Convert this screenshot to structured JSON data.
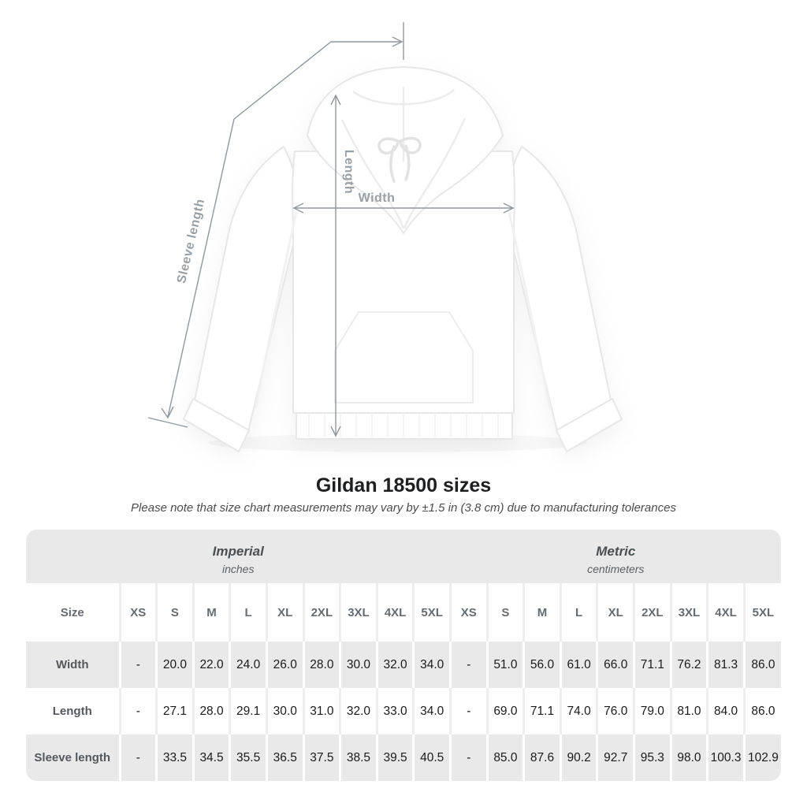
{
  "figure": {
    "labels": {
      "length": "Length",
      "width": "Width",
      "sleeve_length": "Sleeve length"
    }
  },
  "header": {
    "title": "Gildan 18500 sizes",
    "subtitle": "Please note that size chart measurements may vary by ±1.5 in (3.8 cm) due to manufacturing tolerances"
  },
  "chart_data": {
    "type": "table",
    "title": "Gildan 18500 sizes",
    "sections": [
      {
        "title": "Imperial",
        "unit": "inches"
      },
      {
        "title": "Metric",
        "unit": "centimeters"
      }
    ],
    "size_column_label": "Size",
    "sizes": [
      "XS",
      "S",
      "M",
      "L",
      "XL",
      "2XL",
      "3XL",
      "4XL",
      "5XL"
    ],
    "rows": [
      {
        "label": "Width",
        "imperial": [
          "-",
          "20.0",
          "22.0",
          "24.0",
          "26.0",
          "28.0",
          "30.0",
          "32.0",
          "34.0"
        ],
        "metric": [
          "-",
          "51.0",
          "56.0",
          "61.0",
          "66.0",
          "71.1",
          "76.2",
          "81.3",
          "86.0"
        ]
      },
      {
        "label": "Length",
        "imperial": [
          "-",
          "27.1",
          "28.0",
          "29.1",
          "30.0",
          "31.0",
          "32.0",
          "33.0",
          "34.0"
        ],
        "metric": [
          "-",
          "69.0",
          "71.1",
          "74.0",
          "76.0",
          "79.0",
          "81.0",
          "84.0",
          "86.0"
        ]
      },
      {
        "label": "Sleeve length",
        "imperial": [
          "-",
          "33.5",
          "34.5",
          "35.5",
          "36.5",
          "37.5",
          "38.5",
          "39.5",
          "40.5"
        ],
        "metric": [
          "-",
          "85.0",
          "87.6",
          "90.2",
          "92.7",
          "95.3",
          "98.0",
          "100.3",
          "102.9"
        ]
      }
    ]
  },
  "colors": {
    "band_gray": "#e9e9e9",
    "annotation_line": "#8f979c",
    "annotation_label": "#99a0a5",
    "value_text": "#1a1b1d"
  }
}
